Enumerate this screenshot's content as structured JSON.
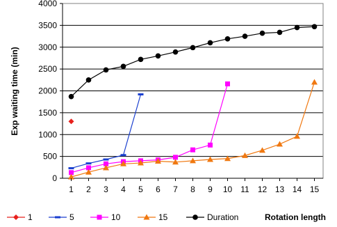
{
  "chart_data": {
    "type": "line",
    "ylabel": "Exp waiting time (min)",
    "xlabel": "Rotation length",
    "x_ticks": [
      "1",
      "2",
      "3",
      "4",
      "5",
      "6",
      "7",
      "8",
      "9",
      "10",
      "11",
      "12",
      "13",
      "14",
      "15"
    ],
    "y_ticks": [
      "0",
      "500",
      "1000",
      "1500",
      "2000",
      "2500",
      "3000",
      "3500",
      "4000"
    ],
    "xlim": [
      0.5,
      15.5
    ],
    "ylim": [
      0,
      4000
    ],
    "grid": "horizontal",
    "legend_position": "bottom",
    "series": [
      {
        "name": "1",
        "color": "#e8201c",
        "marker": "diamond",
        "points": [
          [
            1,
            1300
          ]
        ]
      },
      {
        "name": "5",
        "color": "#1a3fcf",
        "marker": "dash",
        "points": [
          [
            1,
            230
          ],
          [
            2,
            340
          ],
          [
            3,
            430
          ],
          [
            4,
            530
          ],
          [
            5,
            1920
          ]
        ]
      },
      {
        "name": "10",
        "color": "#ff00ff",
        "marker": "square",
        "points": [
          [
            1,
            130
          ],
          [
            2,
            240
          ],
          [
            3,
            330
          ],
          [
            4,
            380
          ],
          [
            5,
            400
          ],
          [
            6,
            420
          ],
          [
            7,
            480
          ],
          [
            8,
            650
          ],
          [
            9,
            760
          ],
          [
            10,
            2160
          ]
        ]
      },
      {
        "name": "15",
        "color": "#f07810",
        "marker": "triangle",
        "points": [
          [
            1,
            30
          ],
          [
            2,
            140
          ],
          [
            3,
            240
          ],
          [
            4,
            330
          ],
          [
            5,
            350
          ],
          [
            6,
            390
          ],
          [
            7,
            370
          ],
          [
            8,
            400
          ],
          [
            9,
            430
          ],
          [
            10,
            450
          ],
          [
            11,
            520
          ],
          [
            12,
            640
          ],
          [
            13,
            780
          ],
          [
            14,
            960
          ],
          [
            15,
            2200
          ]
        ]
      },
      {
        "name": "Duration",
        "color": "#000000",
        "marker": "circle",
        "points": [
          [
            1,
            1870
          ],
          [
            2,
            2250
          ],
          [
            3,
            2480
          ],
          [
            4,
            2560
          ],
          [
            5,
            2720
          ],
          [
            6,
            2800
          ],
          [
            7,
            2890
          ],
          [
            8,
            2990
          ],
          [
            9,
            3100
          ],
          [
            10,
            3190
          ],
          [
            11,
            3250
          ],
          [
            12,
            3320
          ],
          [
            13,
            3340
          ],
          [
            14,
            3450
          ],
          [
            15,
            3470
          ]
        ]
      }
    ]
  }
}
